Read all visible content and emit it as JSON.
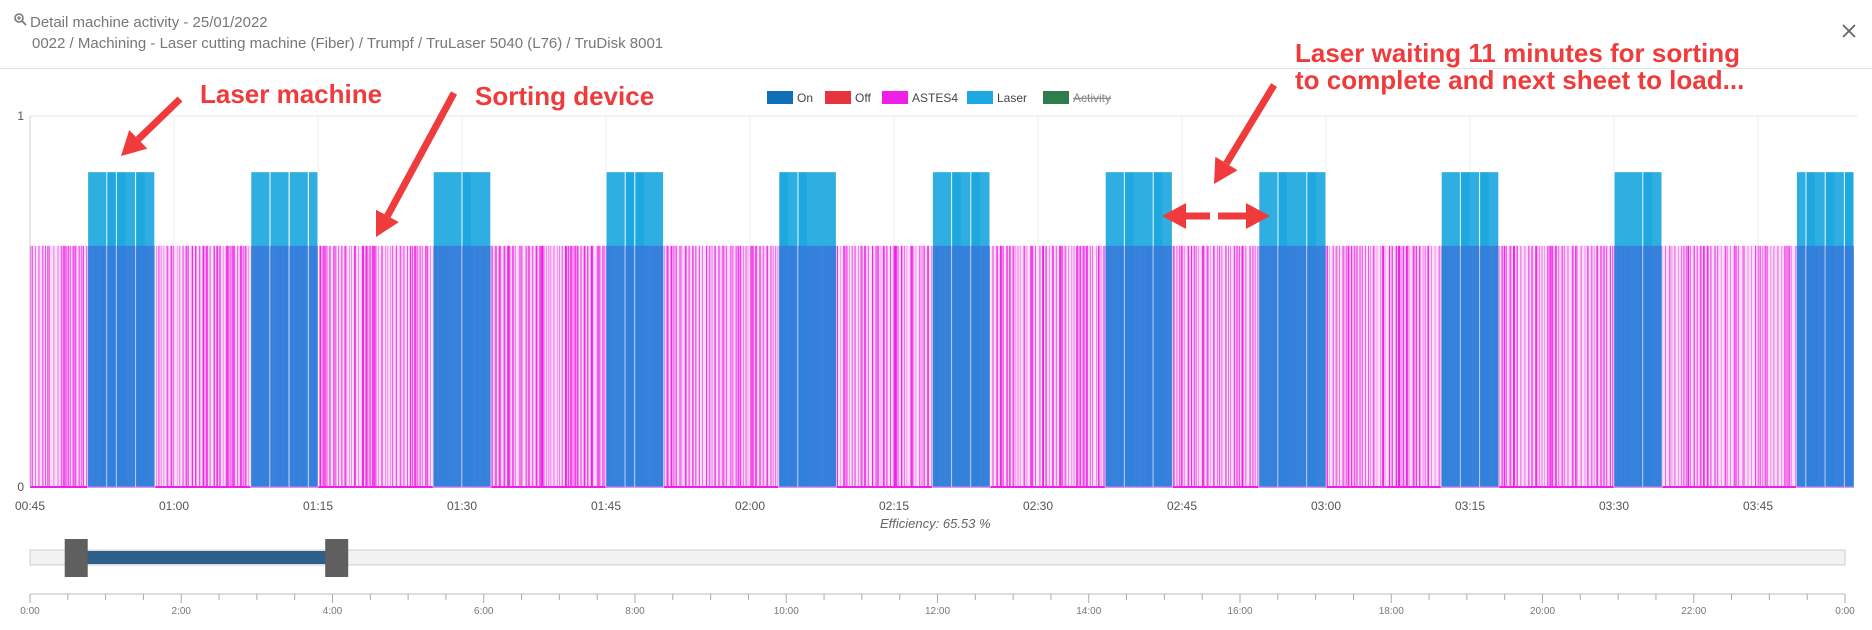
{
  "header": {
    "title": "Detail machine activity - 25/01/2022",
    "subtitle": "0022 / Machining - Laser cutting machine (Fiber) / Trumpf / TruLaser 5040 (L76) / TruDisk 8001",
    "icons": {
      "zoom": "zoom-icon",
      "close": "close-icon"
    }
  },
  "annotations": {
    "laser_machine": "Laser machine",
    "sorting_device": "Sorting device",
    "waiting_line1": "Laser waiting 11 minutes for sorting",
    "waiting_line2": "to complete and next sheet to load..."
  },
  "efficiency_label": "Efficiency: 65.53 %",
  "colors": {
    "on": "#0f6fb4",
    "off": "#e5353f",
    "astes4": "#f01fe6",
    "laser": "#1ea8e0",
    "activity": "#2f7d4f",
    "annotation": "#ef3b3b"
  },
  "chart_data": {
    "type": "bar",
    "legend": [
      {
        "name": "On",
        "color": "#0f6fb4",
        "hidden": false
      },
      {
        "name": "Off",
        "color": "#e5353f",
        "hidden": false
      },
      {
        "name": "ASTES4",
        "color": "#f01fe6",
        "hidden": false
      },
      {
        "name": "Laser",
        "color": "#1ea8e0",
        "hidden": false
      },
      {
        "name": "Activity",
        "color": "#2f7d4f",
        "hidden": true
      }
    ],
    "legend_position": "top-center",
    "y_ticks": [
      "1",
      "0"
    ],
    "ylim": [
      0,
      1
    ],
    "x_ticks": [
      "00:45",
      "01:00",
      "01:15",
      "01:30",
      "01:45",
      "02:00",
      "02:15",
      "02:30",
      "02:45",
      "03:00",
      "03:15",
      "03:30",
      "03:45"
    ],
    "x_range": [
      "00:45",
      "03:55"
    ],
    "series": [
      {
        "name": "Laser",
        "level": 0.85,
        "blocks": [
          [
            "00:51",
            "00:53"
          ],
          [
            "00:53",
            "00:54"
          ],
          [
            "00:54",
            "00:56"
          ],
          [
            "00:56",
            "00:57"
          ],
          [
            "01:08",
            "01:09"
          ],
          [
            "01:10",
            "01:11"
          ],
          [
            "01:12",
            "01:13"
          ],
          [
            "01:14",
            "01:14"
          ],
          [
            "01:27",
            "01:30"
          ],
          [
            "01:30",
            "01:32"
          ],
          [
            "01:45",
            "01:47"
          ],
          [
            "01:47",
            "01:48"
          ],
          [
            "01:48",
            "01:50"
          ],
          [
            "02:03",
            "02:03"
          ],
          [
            "02:03",
            "02:05"
          ],
          [
            "02:05",
            "02:08"
          ],
          [
            "02:19",
            "02:21"
          ],
          [
            "02:21",
            "02:23"
          ],
          [
            "02:23",
            "02:24"
          ],
          [
            "02:37",
            "02:39"
          ],
          [
            "02:39",
            "02:42"
          ],
          [
            "02:42",
            "02:43"
          ],
          [
            "02:53",
            "02:55"
          ],
          [
            "02:55",
            "02:58"
          ],
          [
            "02:58",
            "02:59"
          ],
          [
            "03:12",
            "03:14"
          ],
          [
            "03:14",
            "03:16"
          ],
          [
            "03:16",
            "03:17"
          ],
          [
            "03:30",
            "03:33"
          ],
          [
            "03:33",
            "03:34"
          ],
          [
            "03:49",
            "03:50"
          ],
          [
            "03:50",
            "03:52"
          ],
          [
            "03:52",
            "03:54"
          ],
          [
            "03:54",
            "03:55"
          ]
        ]
      },
      {
        "name": "ASTES4",
        "level": 0.65,
        "range": [
          "00:45",
          "03:55"
        ]
      }
    ]
  },
  "navigator": {
    "x_ticks": [
      "0:00",
      "2:00",
      "4:00",
      "6:00",
      "8:00",
      "10:00",
      "12:00",
      "14:00",
      "16:00",
      "18:00",
      "20:00",
      "22:00",
      "0:00"
    ],
    "selection": [
      "00:45",
      "03:55"
    ]
  }
}
